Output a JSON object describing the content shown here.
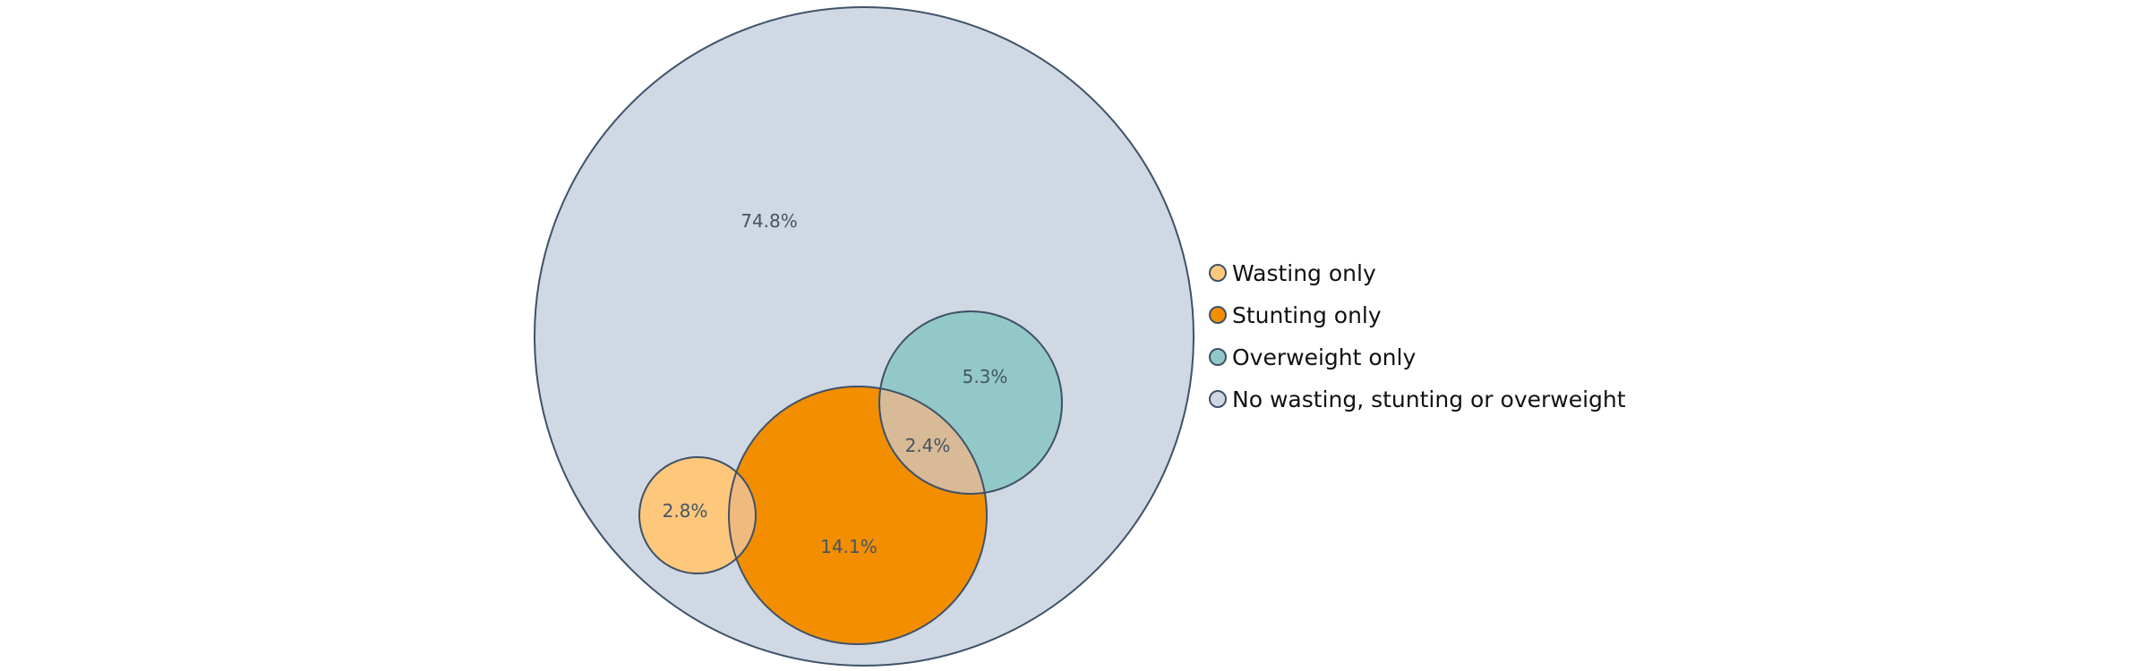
{
  "chart_data": {
    "type": "venn",
    "sets": [
      {
        "name": "Wasting only",
        "value": 2.8,
        "label": "2.8%",
        "color": "#FDC77C"
      },
      {
        "name": "Stunting only",
        "value": 14.1,
        "label": "14.1%",
        "color": "#F28E00"
      },
      {
        "name": "Overweight only",
        "value": 5.3,
        "label": "5.3%",
        "color": "#93C8C8"
      },
      {
        "name": "No wasting, stunting or overweight",
        "value": 74.8,
        "label": "74.8%",
        "color": "#CFD8E3"
      }
    ],
    "overlaps": [
      {
        "sets": [
          "Stunting only",
          "Overweight only"
        ],
        "value": 2.4,
        "label": "2.4%",
        "color": "#D8BA96"
      },
      {
        "sets": [
          "Wasting only",
          "Stunting only"
        ],
        "color": "#F0B97E"
      }
    ],
    "outline_color": "#3F5268",
    "legend_position": "right"
  }
}
